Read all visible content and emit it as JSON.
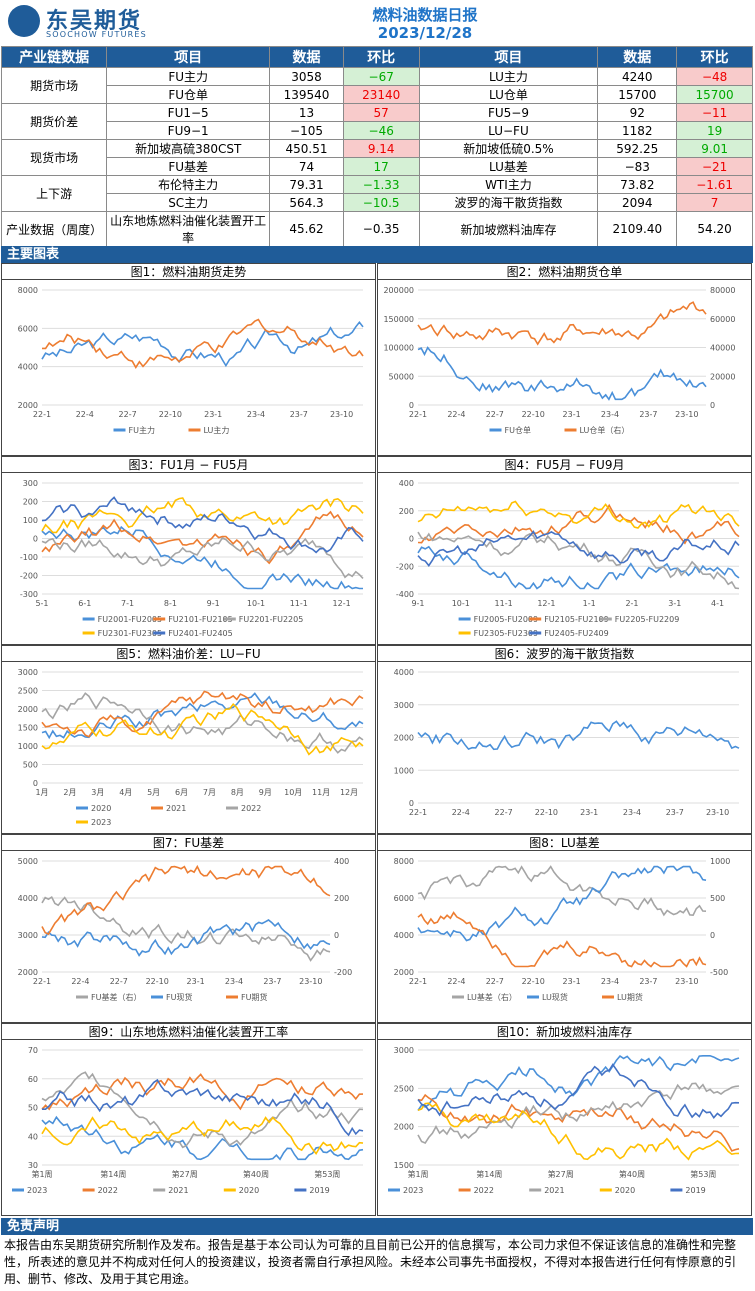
{
  "header": {
    "logo_cn": "东吴期货",
    "logo_en": "SOOCHOW FUTURES",
    "title": "燃料油数据日报",
    "date": "2023/12/28"
  },
  "table": {
    "headers": [
      "产业链数据",
      "项目",
      "数据",
      "环比",
      "项目",
      "数据",
      "环比"
    ],
    "rows": [
      [
        "期货市场",
        "FU主力",
        "3058",
        "−67",
        "LU主力",
        "4240",
        "−48"
      ],
      [
        "",
        "FU仓单",
        "139540",
        "23140",
        "LU仓单",
        "15700",
        "15700"
      ],
      [
        "期货价差",
        "FU1−5",
        "13",
        "57",
        "FU5−9",
        "92",
        "−11"
      ],
      [
        "",
        "FU9−1",
        "−105",
        "−46",
        "LU−FU",
        "1182",
        "19"
      ],
      [
        "现货市场",
        "新加坡高硫380CST",
        "450.51",
        "9.14",
        "新加坡低硫0.5%",
        "592.25",
        "9.01"
      ],
      [
        "",
        "FU基差",
        "74",
        "17",
        "LU基差",
        "−83",
        "−21"
      ],
      [
        "上下游",
        "布伦特主力",
        "79.31",
        "−1.33",
        "WTI主力",
        "73.82",
        "−1.61"
      ],
      [
        "",
        "SC主力",
        "564.3",
        "−10.5",
        "波罗的海干散货指数",
        "2094",
        "7"
      ],
      [
        "产业数据（周度）",
        "山东地炼燃料油催化装置开工率",
        "45.62",
        "−0.35",
        "新加坡燃料油库存",
        "2109.40",
        "54.20"
      ]
    ],
    "colors": [
      "down",
      "up",
      "up",
      "down",
      "up",
      "up",
      "down",
      "down",
      "up",
      "down",
      "down",
      "up",
      "down",
      "up",
      "down",
      "up"
    ]
  },
  "section_charts": "主要图表",
  "section_disclaimer": "免责声明",
  "disclaimer": "本报告由东吴期货研究所制作及发布。报告是基于本公司认为可靠的且目前已公开的信息撰写，本公司力求但不保证该信息的准确性和完整性，所表述的意见并不构成对任何人的投资建议，投资者需自行承担风险。未经本公司事先书面授权，不得对本报告进行任何有悖原意的引用、删节、修改、及用于其它用途。",
  "charts": [
    {
      "title": "图1：燃料油期货走势",
      "yl": [
        "8000",
        "6000",
        "4000",
        "2000"
      ],
      "yr": [],
      "x": [
        "22-1",
        "22-4",
        "22-7",
        "22-10",
        "23-1",
        "23-4",
        "23-7",
        "23-10"
      ],
      "legend": [
        "FU主力",
        "LU主力"
      ],
      "colors": [
        "#4a90d9",
        "#ed7d31"
      ]
    },
    {
      "title": "图2：燃料油期货仓单",
      "yl": [
        "200000",
        "150000",
        "100000",
        "50000",
        "0"
      ],
      "yr": [
        "80000",
        "60000",
        "40000",
        "20000",
        "0"
      ],
      "x": [
        "22-1",
        "22-4",
        "22-7",
        "22-10",
        "23-1",
        "23-4",
        "23-7",
        "23-10"
      ],
      "legend": [
        "FU仓单",
        "LU仓单（右）"
      ],
      "colors": [
        "#4a90d9",
        "#ed7d31"
      ]
    },
    {
      "title": "图3：FU1月 − FU5月",
      "yl": [
        "300",
        "200",
        "100",
        "0",
        "-100",
        "-200",
        "-300"
      ],
      "yr": [],
      "x": [
        "5-1",
        "6-1",
        "7-1",
        "8-1",
        "9-1",
        "10-1",
        "11-1",
        "12-1"
      ],
      "legend": [
        "FU2001-FU2005",
        "FU2101-FU2105",
        "FU2201-FU2205",
        "FU2301-FU2305",
        "FU2401-FU2405"
      ],
      "colors": [
        "#4a90d9",
        "#ed7d31",
        "#a5a5a5",
        "#ffc000",
        "#4472c4"
      ]
    },
    {
      "title": "图4：FU5月 − FU9月",
      "yl": [
        "400",
        "200",
        "0",
        "-200",
        "-400"
      ],
      "yr": [],
      "x": [
        "9-1",
        "10-1",
        "11-1",
        "12-1",
        "1-1",
        "2-1",
        "3-1",
        "4-1"
      ],
      "legend": [
        "FU2005-FU2009",
        "FU2105-FU2109",
        "FU2205-FU2209",
        "FU2305-FU2309",
        "FU2405-FU2409"
      ],
      "colors": [
        "#4a90d9",
        "#ed7d31",
        "#a5a5a5",
        "#ffc000",
        "#4472c4"
      ]
    },
    {
      "title": "图5：燃料油价差：LU−FU",
      "yl": [
        "3000",
        "2500",
        "2000",
        "1500",
        "1000",
        "500",
        "0"
      ],
      "yr": [],
      "x": [
        "1月",
        "2月",
        "3月",
        "4月",
        "5月",
        "6月",
        "7月",
        "8月",
        "9月",
        "10月",
        "11月",
        "12月"
      ],
      "legend": [
        "2020",
        "2021",
        "2022",
        "2023"
      ],
      "colors": [
        "#4a90d9",
        "#ed7d31",
        "#a5a5a5",
        "#ffc000"
      ]
    },
    {
      "title": "图6：波罗的海干散货指数",
      "yl": [
        "4000",
        "3000",
        "2000",
        "1000",
        "0"
      ],
      "yr": [],
      "x": [
        "22-1",
        "22-4",
        "22-7",
        "22-10",
        "23-1",
        "23-4",
        "23-7",
        "23-10"
      ],
      "legend": [],
      "colors": [
        "#4a90d9"
      ]
    },
    {
      "title": "图7：FU基差",
      "yl": [
        "5000",
        "4000",
        "3000",
        "2000"
      ],
      "yr": [
        "400",
        "200",
        "0",
        "-200"
      ],
      "x": [
        "22-1",
        "22-4",
        "22-7",
        "22-10",
        "23-1",
        "23-4",
        "23-7",
        "23-10"
      ],
      "legend": [
        "FU基差（右）",
        "FU现货",
        "FU期货"
      ],
      "colors": [
        "#a5a5a5",
        "#4a90d9",
        "#ed7d31"
      ]
    },
    {
      "title": "图8：LU基差",
      "yl": [
        "8000",
        "6000",
        "4000",
        "2000"
      ],
      "yr": [
        "1000",
        "500",
        "0",
        "-500"
      ],
      "x": [
        "22-1",
        "22-4",
        "22-7",
        "22-10",
        "23-1",
        "23-4",
        "23-7",
        "23-10"
      ],
      "legend": [
        "LU基差（右）",
        "LU现货",
        "LU期货"
      ],
      "colors": [
        "#a5a5a5",
        "#4a90d9",
        "#ed7d31"
      ]
    },
    {
      "title": "图9：山东地炼燃料油催化装置开工率",
      "yl": [
        "70",
        "60",
        "50",
        "40",
        "30"
      ],
      "yr": [],
      "x": [
        "第1周",
        "第14周",
        "第27周",
        "第40周",
        "第53周"
      ],
      "legend": [
        "2023",
        "2022",
        "2021",
        "2020",
        "2019"
      ],
      "colors": [
        "#4a90d9",
        "#ed7d31",
        "#a5a5a5",
        "#ffc000",
        "#4472c4"
      ]
    },
    {
      "title": "图10：新加坡燃料油库存",
      "yl": [
        "3000",
        "2500",
        "2000",
        "1500"
      ],
      "yr": [],
      "x": [
        "第1周",
        "第14周",
        "第27周",
        "第40周",
        "第53周"
      ],
      "legend": [
        "2023",
        "2022",
        "2021",
        "2020",
        "2019"
      ],
      "colors": [
        "#4a90d9",
        "#ed7d31",
        "#a5a5a5",
        "#ffc000",
        "#4472c4"
      ]
    }
  ]
}
